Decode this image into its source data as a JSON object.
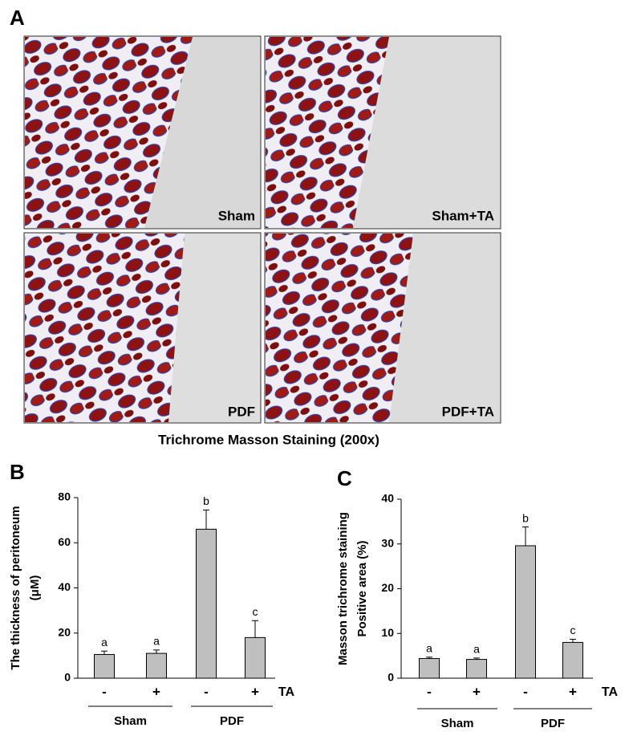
{
  "figure": {
    "panel_labels": [
      "A",
      "B",
      "C"
    ],
    "images": [
      "Sham",
      "Sham+TA",
      "PDF",
      "PDF+TA"
    ],
    "caption": "Trichrome Masson Staining (200x)"
  },
  "chart_data": [
    {
      "type": "bar",
      "ylabel": [
        "The thickness of peritoneum",
        "(μM)"
      ],
      "categories": [
        "-",
        "+",
        "-",
        "+"
      ],
      "factor_label": "TA",
      "groups": [
        "Sham",
        "PDF"
      ],
      "values": [
        10.5,
        11,
        66,
        18
      ],
      "errors": [
        1.5,
        1.5,
        8.5,
        7.5
      ],
      "annotations": [
        "a",
        "a",
        "b",
        "c"
      ],
      "color": "#bfbfbf",
      "ylim": [
        0,
        80
      ],
      "yticks": [
        0,
        20,
        40,
        60,
        80
      ]
    },
    {
      "type": "bar",
      "ylabel": [
        "Masson trichrome staining",
        "Positive area (%)"
      ],
      "categories": [
        "-",
        "+",
        "-",
        "+"
      ],
      "factor_label": "TA",
      "groups": [
        "Sham",
        "PDF"
      ],
      "values": [
        4.4,
        4.2,
        29.6,
        8
      ],
      "errors": [
        0.3,
        0.3,
        4.2,
        0.7
      ],
      "annotations": [
        "a",
        "a",
        "b",
        "c"
      ],
      "color": "#bfbfbf",
      "ylim": [
        0,
        40
      ],
      "yticks": [
        0,
        10,
        20,
        30,
        40
      ]
    }
  ]
}
